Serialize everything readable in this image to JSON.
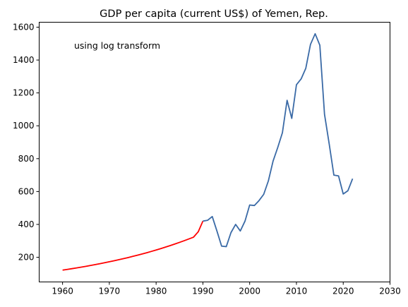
{
  "chart_data": {
    "type": "line",
    "title": "GDP per capita (current US$) of Yemen, Rep.",
    "annotation": "using log transform",
    "xlabel": "",
    "ylabel": "",
    "xlim": [
      1955,
      2030
    ],
    "ylim": [
      50,
      1630
    ],
    "xticks": [
      1960,
      1970,
      1980,
      1990,
      2000,
      2010,
      2020,
      2030
    ],
    "yticks": [
      200,
      400,
      600,
      800,
      1000,
      1200,
      1400,
      1600
    ],
    "grid": false,
    "colors": {
      "imputed": "#ff0000",
      "observed": "#3a6aa6"
    },
    "series": [
      {
        "key": "imputed",
        "x": [
          1960,
          1961,
          1962,
          1963,
          1964,
          1965,
          1966,
          1967,
          1968,
          1969,
          1970,
          1971,
          1972,
          1973,
          1974,
          1975,
          1976,
          1977,
          1978,
          1979,
          1980,
          1981,
          1982,
          1983,
          1984,
          1985,
          1986,
          1987,
          1988,
          1989,
          1990
        ],
        "y": [
          122,
          126.3,
          130.8,
          135.4,
          140.2,
          145.2,
          150.3,
          155.6,
          161.1,
          166.8,
          172.7,
          178.8,
          185.1,
          191.6,
          198.4,
          205.4,
          212.6,
          220.1,
          227.9,
          236,
          244.3,
          252.9,
          261.9,
          271.1,
          280.7,
          290.6,
          300.9,
          311.5,
          322.5,
          355,
          420
        ]
      },
      {
        "key": "observed",
        "x": [
          1990,
          1991,
          1992,
          1993,
          1994,
          1995,
          1996,
          1997,
          1998,
          1999,
          2000,
          2001,
          2002,
          2003,
          2004,
          2005,
          2006,
          2007,
          2008,
          2009,
          2010,
          2011,
          2012,
          2013,
          2014,
          2015,
          2016,
          2017,
          2018,
          2019,
          2020,
          2021,
          2022
        ],
        "y": [
          420,
          425,
          448,
          360,
          268,
          265,
          350,
          400,
          360,
          420,
          518,
          515,
          545,
          583,
          665,
          785,
          868,
          958,
          1155,
          1045,
          1250,
          1285,
          1350,
          1495,
          1560,
          1490,
          1070,
          890,
          700,
          695,
          585,
          605,
          678
        ]
      }
    ]
  }
}
